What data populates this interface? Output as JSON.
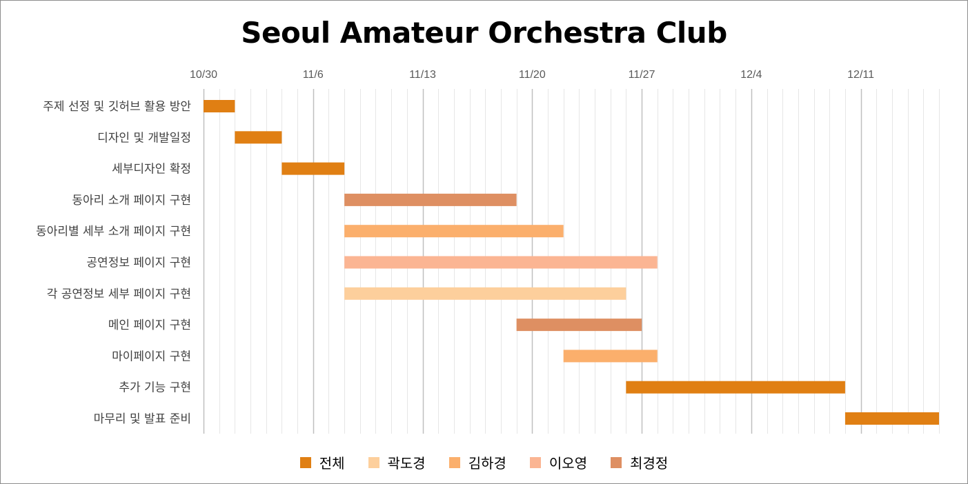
{
  "chart_data": {
    "type": "bar",
    "orientation": "gantt",
    "title": "Seoul Amateur Orchestra Club",
    "x_axis": {
      "min": "2023-10-30",
      "max": "2023-12-16",
      "ticks": [
        {
          "date": "2023-10-30",
          "label": "10/30"
        },
        {
          "date": "2023-11-06",
          "label": "11/6"
        },
        {
          "date": "2023-11-13",
          "label": "11/13"
        },
        {
          "date": "2023-11-20",
          "label": "11/20"
        },
        {
          "date": "2023-11-27",
          "label": "11/27"
        },
        {
          "date": "2023-12-04",
          "label": "12/4"
        },
        {
          "date": "2023-12-11",
          "label": "12/11"
        }
      ],
      "position": "top",
      "minor_grid": "daily"
    },
    "grid": true,
    "legend_position": "bottom",
    "series": [
      {
        "name": "전체",
        "color": "#E07F13"
      },
      {
        "name": "곽도경",
        "color": "#FDCF9C"
      },
      {
        "name": "김하경",
        "color": "#FBAF6C"
      },
      {
        "name": "이오영",
        "color": "#FBB593"
      },
      {
        "name": "최경정",
        "color": "#DE8F62"
      }
    ],
    "tasks": [
      {
        "label": "주제 선정 및 깃허브 활용 방안",
        "start": "2023-10-30",
        "end": "2023-11-01",
        "series": "전체"
      },
      {
        "label": "디자인 및 개발일정",
        "start": "2023-11-01",
        "end": "2023-11-04",
        "series": "전체"
      },
      {
        "label": "세부디자인 확정",
        "start": "2023-11-04",
        "end": "2023-11-08",
        "series": "전체"
      },
      {
        "label": "동아리 소개 페이지 구현",
        "start": "2023-11-08",
        "end": "2023-11-19",
        "series": "최경정"
      },
      {
        "label": "동아리별 세부 소개 페이지 구현",
        "start": "2023-11-08",
        "end": "2023-11-22",
        "series": "김하경"
      },
      {
        "label": "공연정보 페이지 구현",
        "start": "2023-11-08",
        "end": "2023-11-28",
        "series": "이오영"
      },
      {
        "label": "각 공연정보 세부 페이지 구현",
        "start": "2023-11-08",
        "end": "2023-11-26",
        "series": "곽도경"
      },
      {
        "label": "메인 페이지 구현",
        "start": "2023-11-19",
        "end": "2023-11-27",
        "series": "최경정"
      },
      {
        "label": "마이페이지 구현",
        "start": "2023-11-22",
        "end": "2023-11-28",
        "series": "김하경"
      },
      {
        "label": "추가 기능 구현",
        "start": "2023-11-26",
        "end": "2023-12-10",
        "series": "전체"
      },
      {
        "label": "마무리 및 발표 준비",
        "start": "2023-12-10",
        "end": "2023-12-16",
        "series": "전체"
      }
    ]
  }
}
